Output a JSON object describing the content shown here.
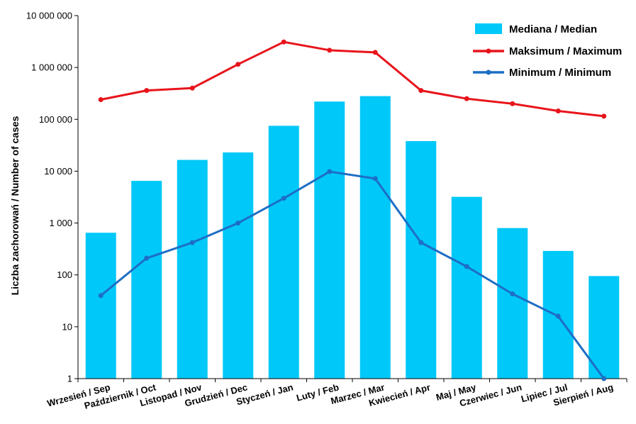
{
  "chart_data": {
    "type": "bar",
    "y_scale": "log",
    "ylim": [
      1,
      10000000
    ],
    "ylabel": "Liczba zachorowań  /  Number of cases",
    "xlabel": "",
    "grid": false,
    "legend_position": "top-right",
    "y_ticks": [
      {
        "value": 1,
        "label": "1"
      },
      {
        "value": 10,
        "label": "10"
      },
      {
        "value": 100,
        "label": "100"
      },
      {
        "value": 1000,
        "label": "1 000"
      },
      {
        "value": 10000,
        "label": "10 000"
      },
      {
        "value": 100000,
        "label": "100 000"
      },
      {
        "value": 1000000,
        "label": "1 000 000"
      },
      {
        "value": 10000000,
        "label": "10 000 000"
      }
    ],
    "categories": [
      "Wrzesień / Sep",
      "Październik / Oct",
      "Listopad / Nov",
      "Grudzień / Dec",
      "Styczeń  / Jan",
      "Luty / Feb",
      "Marzec / Mar",
      "Kwiecień / Apr",
      "Maj / May",
      "Czerwiec / Jun",
      "Lipiec / Jul",
      "Sierpień / Aug"
    ],
    "series": [
      {
        "name": "Mediana  /  Median",
        "kind": "bar",
        "color": "#00c8f8",
        "values": [
          650,
          6500,
          16500,
          23000,
          75000,
          220000,
          280000,
          38000,
          3200,
          800,
          290,
          95
        ]
      },
      {
        "name": "Maksimum  /  Maximum",
        "kind": "line",
        "color": "#e8141b",
        "values": [
          240000,
          360000,
          400000,
          1150000,
          3100000,
          2150000,
          1950000,
          360000,
          250000,
          200000,
          145000,
          115000
        ]
      },
      {
        "name": "Minimum  /  Minimum",
        "kind": "line",
        "color": "#1d6ec5",
        "values": [
          40,
          210,
          420,
          1000,
          3000,
          9800,
          7200,
          420,
          145,
          43,
          16,
          1
        ]
      }
    ]
  }
}
